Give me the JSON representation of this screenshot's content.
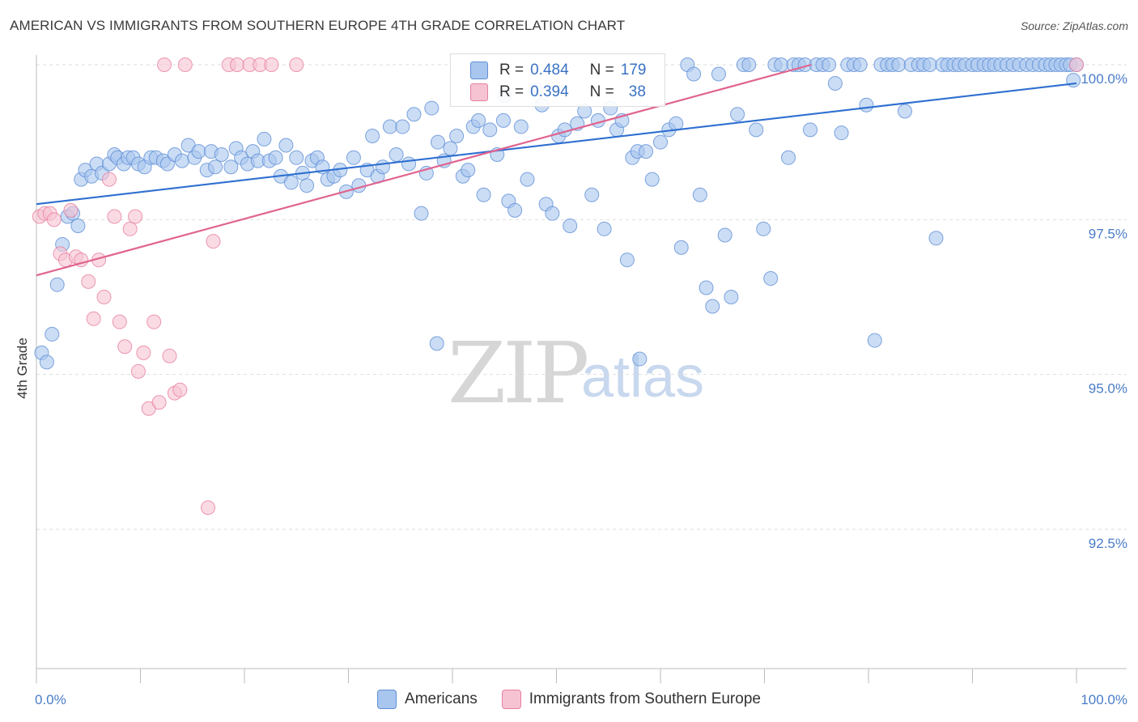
{
  "title": "AMERICAN VS IMMIGRANTS FROM SOUTHERN EUROPE 4TH GRADE CORRELATION CHART",
  "source": "Source: ZipAtlas.com",
  "watermark": {
    "zip": "ZIP",
    "atlas": "atlas"
  },
  "legend_top": {
    "americans": {
      "r_label": "R =",
      "r_value": "0.484",
      "n_label": "N =",
      "n_value": "179"
    },
    "immigrants": {
      "r_label": "R =",
      "r_value": "0.394",
      "n_label": "N =",
      "n_value": "38"
    }
  },
  "legend_bottom": {
    "americans": "Americans",
    "immigrants": "Immigrants from Southern Europe"
  },
  "colors": {
    "blue_fill": "#a9c6ee",
    "blue_stroke": "#5f8fd6",
    "blue_line": "#2f6fd0",
    "pink_fill": "#f6c3d2",
    "pink_stroke": "#e7809f",
    "pink_line": "#e0648f",
    "grid": "#dddddd",
    "tick_text": "#4a7cc7"
  },
  "chart_data": {
    "type": "scatter",
    "title": "AMERICAN VS IMMIGRANTS FROM SOUTHERN EUROPE 4TH GRADE CORRELATION CHART",
    "xlabel": "",
    "ylabel": "4th Grade",
    "xlim": [
      0,
      100
    ],
    "ylim": [
      90.0,
      100.3
    ],
    "x_tick_labels": [
      "0.0%",
      "100.0%"
    ],
    "y_ticks": [
      92.5,
      95.0,
      97.5,
      100.0
    ],
    "y_tick_labels": [
      "92.5%",
      "95.0%",
      "97.5%",
      "100.0%"
    ],
    "grid": "horizontal dashed",
    "legend": "top-center and bottom",
    "series": [
      {
        "name": "Americans",
        "R": 0.484,
        "N": 179,
        "trend": [
          [
            0,
            97.75
          ],
          [
            100,
            99.7
          ]
        ],
        "points": [
          [
            0.5,
            95.35
          ],
          [
            1.0,
            95.2
          ],
          [
            1.5,
            95.65
          ],
          [
            2.0,
            96.45
          ],
          [
            2.5,
            97.1
          ],
          [
            3.0,
            97.55
          ],
          [
            3.5,
            97.6
          ],
          [
            4.0,
            97.4
          ],
          [
            4.3,
            98.15
          ],
          [
            4.7,
            98.3
          ],
          [
            5.3,
            98.2
          ],
          [
            5.8,
            98.4
          ],
          [
            6.3,
            98.25
          ],
          [
            7.0,
            98.4
          ],
          [
            7.5,
            98.55
          ],
          [
            7.8,
            98.5
          ],
          [
            8.4,
            98.4
          ],
          [
            8.8,
            98.5
          ],
          [
            9.3,
            98.5
          ],
          [
            9.8,
            98.4
          ],
          [
            10.4,
            98.35
          ],
          [
            11.0,
            98.5
          ],
          [
            11.5,
            98.5
          ],
          [
            12.2,
            98.45
          ],
          [
            12.6,
            98.4
          ],
          [
            13.3,
            98.55
          ],
          [
            14.0,
            98.45
          ],
          [
            14.6,
            98.7
          ],
          [
            15.2,
            98.5
          ],
          [
            15.6,
            98.6
          ],
          [
            16.4,
            98.3
          ],
          [
            16.8,
            98.6
          ],
          [
            17.2,
            98.35
          ],
          [
            17.8,
            98.55
          ],
          [
            18.7,
            98.35
          ],
          [
            19.2,
            98.65
          ],
          [
            19.7,
            98.5
          ],
          [
            20.3,
            98.4
          ],
          [
            20.8,
            98.6
          ],
          [
            21.3,
            98.45
          ],
          [
            21.9,
            98.8
          ],
          [
            22.4,
            98.45
          ],
          [
            23.0,
            98.5
          ],
          [
            23.5,
            98.2
          ],
          [
            24.0,
            98.7
          ],
          [
            24.5,
            98.1
          ],
          [
            25.0,
            98.5
          ],
          [
            25.6,
            98.25
          ],
          [
            26.0,
            98.05
          ],
          [
            26.5,
            98.45
          ],
          [
            27.0,
            98.5
          ],
          [
            27.5,
            98.35
          ],
          [
            28.0,
            98.15
          ],
          [
            28.6,
            98.2
          ],
          [
            29.2,
            98.3
          ],
          [
            29.8,
            97.95
          ],
          [
            30.5,
            98.5
          ],
          [
            31.0,
            98.05
          ],
          [
            31.8,
            98.3
          ],
          [
            32.3,
            98.85
          ],
          [
            32.8,
            98.2
          ],
          [
            33.3,
            98.35
          ],
          [
            34.0,
            99.0
          ],
          [
            34.6,
            98.55
          ],
          [
            35.2,
            99.0
          ],
          [
            35.8,
            98.4
          ],
          [
            36.3,
            99.2
          ],
          [
            37.0,
            97.6
          ],
          [
            37.5,
            98.25
          ],
          [
            38.0,
            99.3
          ],
          [
            38.6,
            98.75
          ],
          [
            39.2,
            98.45
          ],
          [
            39.8,
            98.65
          ],
          [
            40.4,
            98.85
          ],
          [
            41.0,
            98.2
          ],
          [
            41.5,
            98.3
          ],
          [
            42.0,
            99.0
          ],
          [
            42.5,
            99.1
          ],
          [
            43.0,
            97.9
          ],
          [
            43.6,
            98.95
          ],
          [
            44.3,
            98.55
          ],
          [
            44.9,
            99.1
          ],
          [
            45.4,
            97.8
          ],
          [
            46.0,
            97.65
          ],
          [
            46.6,
            99.0
          ],
          [
            47.2,
            98.15
          ],
          [
            48.0,
            99.6
          ],
          [
            48.6,
            99.35
          ],
          [
            49.0,
            97.75
          ],
          [
            49.6,
            97.6
          ],
          [
            50.2,
            98.85
          ],
          [
            50.8,
            98.95
          ],
          [
            51.3,
            97.4
          ],
          [
            52.0,
            99.05
          ],
          [
            52.7,
            99.25
          ],
          [
            53.4,
            97.9
          ],
          [
            54.0,
            99.1
          ],
          [
            54.6,
            97.35
          ],
          [
            55.2,
            99.3
          ],
          [
            55.8,
            98.95
          ],
          [
            56.3,
            99.1
          ],
          [
            56.8,
            96.85
          ],
          [
            57.3,
            98.5
          ],
          [
            57.8,
            98.6
          ],
          [
            58.6,
            98.6
          ],
          [
            59.2,
            98.15
          ],
          [
            60.0,
            98.75
          ],
          [
            60.8,
            98.95
          ],
          [
            61.5,
            99.05
          ],
          [
            62.0,
            97.05
          ],
          [
            62.6,
            100.0
          ],
          [
            63.2,
            99.85
          ],
          [
            63.8,
            97.9
          ],
          [
            64.4,
            96.4
          ],
          [
            65.0,
            96.1
          ],
          [
            65.6,
            99.85
          ],
          [
            66.2,
            97.25
          ],
          [
            66.8,
            96.25
          ],
          [
            67.4,
            99.2
          ],
          [
            68.0,
            100.0
          ],
          [
            68.5,
            100.0
          ],
          [
            69.2,
            98.95
          ],
          [
            69.9,
            97.35
          ],
          [
            70.6,
            96.55
          ],
          [
            71.0,
            100.0
          ],
          [
            71.6,
            100.0
          ],
          [
            72.3,
            98.5
          ],
          [
            72.8,
            100.0
          ],
          [
            73.3,
            100.0
          ],
          [
            73.9,
            100.0
          ],
          [
            74.4,
            98.95
          ],
          [
            75.0,
            100.0
          ],
          [
            75.6,
            100.0
          ],
          [
            76.2,
            100.0
          ],
          [
            76.8,
            99.7
          ],
          [
            77.4,
            98.9
          ],
          [
            78.0,
            100.0
          ],
          [
            78.6,
            100.0
          ],
          [
            79.2,
            100.0
          ],
          [
            79.8,
            99.35
          ],
          [
            80.6,
            95.55
          ],
          [
            81.2,
            100.0
          ],
          [
            81.8,
            100.0
          ],
          [
            82.3,
            100.0
          ],
          [
            82.9,
            100.0
          ],
          [
            83.5,
            99.25
          ],
          [
            84.1,
            100.0
          ],
          [
            84.8,
            100.0
          ],
          [
            85.3,
            100.0
          ],
          [
            85.9,
            100.0
          ],
          [
            86.5,
            97.2
          ],
          [
            87.1,
            100.0
          ],
          [
            87.6,
            100.0
          ],
          [
            88.2,
            100.0
          ],
          [
            88.7,
            100.0
          ],
          [
            89.3,
            100.0
          ],
          [
            90.0,
            100.0
          ],
          [
            90.5,
            100.0
          ],
          [
            91.1,
            100.0
          ],
          [
            91.6,
            100.0
          ],
          [
            92.1,
            100.0
          ],
          [
            92.7,
            100.0
          ],
          [
            93.3,
            100.0
          ],
          [
            93.9,
            100.0
          ],
          [
            94.5,
            100.0
          ],
          [
            95.2,
            100.0
          ],
          [
            95.8,
            100.0
          ],
          [
            96.4,
            100.0
          ],
          [
            97.0,
            100.0
          ],
          [
            97.5,
            100.0
          ],
          [
            98.0,
            100.0
          ],
          [
            98.5,
            100.0
          ],
          [
            99.0,
            100.0
          ],
          [
            99.4,
            100.0
          ],
          [
            99.7,
            99.75
          ],
          [
            100.0,
            100.0
          ],
          [
            45.0,
            99.5
          ],
          [
            38.5,
            95.5
          ],
          [
            58.0,
            95.25
          ]
        ]
      },
      {
        "name": "Immigrants from Southern Europe",
        "R": 0.394,
        "N": 38,
        "trend": [
          [
            0,
            96.6
          ],
          [
            74.5,
            100.0
          ]
        ],
        "points": [
          [
            0.3,
            97.55
          ],
          [
            0.8,
            97.6
          ],
          [
            1.3,
            97.6
          ],
          [
            1.7,
            97.5
          ],
          [
            2.3,
            96.95
          ],
          [
            2.8,
            96.85
          ],
          [
            3.3,
            97.65
          ],
          [
            3.8,
            96.9
          ],
          [
            4.3,
            96.85
          ],
          [
            5.0,
            96.5
          ],
          [
            5.5,
            95.9
          ],
          [
            6.0,
            96.85
          ],
          [
            6.5,
            96.25
          ],
          [
            7.0,
            98.15
          ],
          [
            7.5,
            97.55
          ],
          [
            8.0,
            95.85
          ],
          [
            8.5,
            95.45
          ],
          [
            9.0,
            97.35
          ],
          [
            9.5,
            97.55
          ],
          [
            9.8,
            95.05
          ],
          [
            10.3,
            95.35
          ],
          [
            10.8,
            94.45
          ],
          [
            11.3,
            95.85
          ],
          [
            11.8,
            94.55
          ],
          [
            12.3,
            100.0
          ],
          [
            12.8,
            95.3
          ],
          [
            13.3,
            94.7
          ],
          [
            13.8,
            94.75
          ],
          [
            14.3,
            100.0
          ],
          [
            17.0,
            97.15
          ],
          [
            16.5,
            92.85
          ],
          [
            18.5,
            100.0
          ],
          [
            19.3,
            100.0
          ],
          [
            20.5,
            100.0
          ],
          [
            21.5,
            100.0
          ],
          [
            22.6,
            100.0
          ],
          [
            25.0,
            100.0
          ],
          [
            100.0,
            100.0
          ]
        ]
      }
    ]
  }
}
